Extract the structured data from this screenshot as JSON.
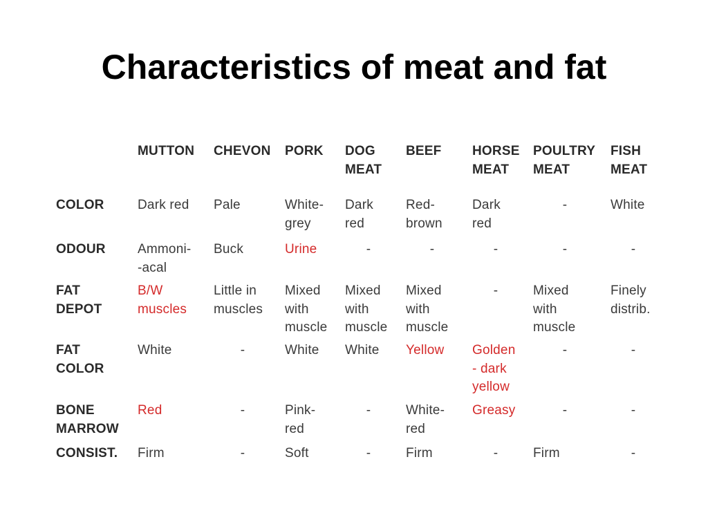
{
  "slide": {
    "title": "Characteristics of meat and fat"
  },
  "table": {
    "columns": [
      "MUTTON",
      "CHEVON",
      "PORK",
      "DOG\nMEAT",
      "BEEF",
      "HORSE\nMEAT",
      "POULTRY\nMEAT",
      "FISH\nMEAT"
    ],
    "rows": [
      {
        "label": "COLOR",
        "cells": [
          {
            "text": "Dark red",
            "red": false
          },
          {
            "text": "Pale",
            "red": false
          },
          {
            "text": "White-\ngrey",
            "red": false
          },
          {
            "text": "Dark\nred",
            "red": false
          },
          {
            "text": "Red-\nbrown",
            "red": false
          },
          {
            "text": "Dark\nred",
            "red": false
          },
          {
            "text": "-",
            "red": false
          },
          {
            "text": "White",
            "red": false
          }
        ]
      },
      {
        "label": "ODOUR",
        "cells": [
          {
            "text": "Ammoni-\n-acal",
            "red": false
          },
          {
            "text": "Buck",
            "red": false
          },
          {
            "text": "Urine",
            "red": true
          },
          {
            "text": "-",
            "red": false
          },
          {
            "text": "-",
            "red": false
          },
          {
            "text": "-",
            "red": false
          },
          {
            "text": "-",
            "red": false
          },
          {
            "text": "-",
            "red": false
          }
        ]
      },
      {
        "label": "FAT\nDEPOT",
        "cells": [
          {
            "text": "B/W\nmuscles",
            "red": true
          },
          {
            "text": "Little in\nmuscles",
            "red": false
          },
          {
            "text": "Mixed\nwith\nmuscle",
            "red": false
          },
          {
            "text": "Mixed\nwith\nmuscle",
            "red": false
          },
          {
            "text": "Mixed\nwith\nmuscle",
            "red": false
          },
          {
            "text": "-",
            "red": false
          },
          {
            "text": "Mixed\nwith\nmuscle",
            "red": false
          },
          {
            "text": "Finely\ndistrib.",
            "red": false
          }
        ]
      },
      {
        "label": "FAT\nCOLOR",
        "cells": [
          {
            "text": "White",
            "red": false
          },
          {
            "text": "-",
            "red": false
          },
          {
            "text": "White",
            "red": false
          },
          {
            "text": "White",
            "red": false
          },
          {
            "text": "Yellow",
            "red": true
          },
          {
            "text": "Golden\n- dark\nyellow",
            "red": true
          },
          {
            "text": "-",
            "red": false
          },
          {
            "text": "-",
            "red": false
          }
        ]
      },
      {
        "label": "BONE\nMARROW",
        "cells": [
          {
            "text": "Red",
            "red": true
          },
          {
            "text": "-",
            "red": false
          },
          {
            "text": "Pink-\nred",
            "red": false
          },
          {
            "text": "-",
            "red": false
          },
          {
            "text": "White-\nred",
            "red": false
          },
          {
            "text": "Greasy",
            "red": true
          },
          {
            "text": "-",
            "red": false
          },
          {
            "text": "-",
            "red": false
          }
        ]
      },
      {
        "label": "CONSIST.",
        "cells": [
          {
            "text": "Firm",
            "red": false
          },
          {
            "text": "-",
            "red": false
          },
          {
            "text": "Soft",
            "red": false
          },
          {
            "text": "-",
            "red": false
          },
          {
            "text": "Firm",
            "red": false
          },
          {
            "text": "-",
            "red": false
          },
          {
            "text": "Firm",
            "red": false
          },
          {
            "text": "-",
            "red": false
          }
        ]
      }
    ]
  },
  "colors": {
    "text": "#3a3a3a",
    "highlight_red": "#d42a2a",
    "background": "#ffffff"
  }
}
